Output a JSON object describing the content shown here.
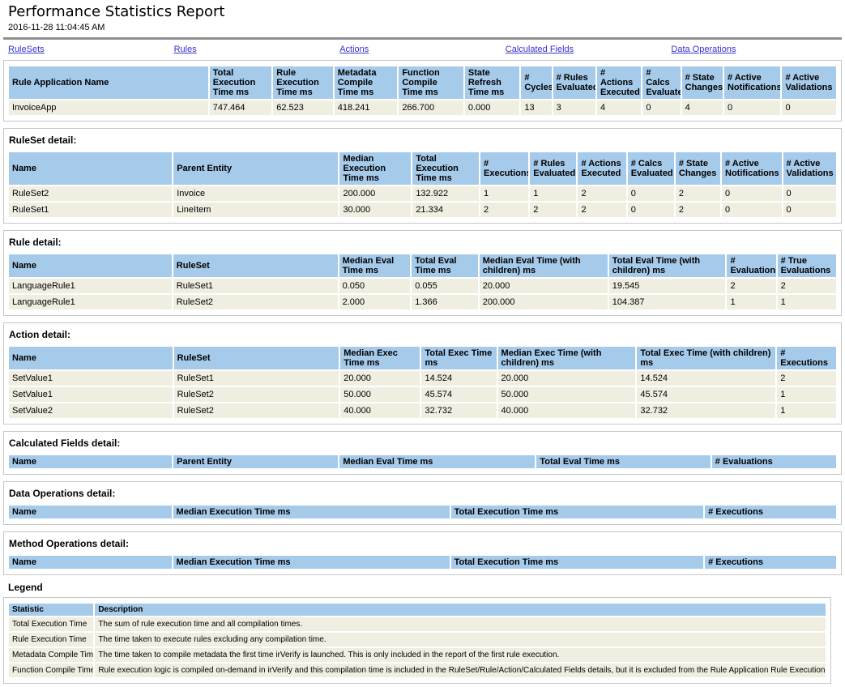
{
  "page": {
    "title": "Performance Statistics Report",
    "timestamp": "2016-11-28 11:04:45 AM"
  },
  "colors": {
    "header_bg": "#a6caea",
    "row_bg": "#efeee1",
    "link": "#3333cc",
    "box_border": "#c6c6c6"
  },
  "nav": {
    "links": [
      {
        "label": "RuleSets"
      },
      {
        "label": "Rules"
      },
      {
        "label": "Actions"
      },
      {
        "label": "Calculated Fields"
      },
      {
        "label": "Data Operations"
      }
    ]
  },
  "sections": [
    {
      "id": "rule-application",
      "heading": null,
      "columns": [
        "Rule Application Name",
        "Total Execution Time ms",
        "Rule Execution Time ms",
        "Metadata Compile Time ms",
        "Function Compile Time ms",
        "State Refresh Time ms",
        "# Cycles",
        "# Rules Evaluated",
        "# Actions Executed",
        "# Calcs Evaluated",
        "# State Changes",
        "# Active Notifications",
        "# Active Validations"
      ],
      "rows": [
        [
          "InvoiceApp",
          "747.464",
          "62.523",
          "418.241",
          "266.700",
          "0.000",
          "13",
          "3",
          "4",
          "0",
          "4",
          "0",
          "0"
        ]
      ]
    },
    {
      "id": "ruleset-detail",
      "heading": "RuleSet detail:",
      "columns": [
        "Name",
        "Parent Entity",
        "Median Execution Time ms",
        "Total Execution Time ms",
        "# Executions",
        "# Rules Evaluated",
        "# Actions Executed",
        "# Calcs Evaluated",
        "# State Changes",
        "# Active Notifications",
        "# Active Validations"
      ],
      "rows": [
        [
          "RuleSet2",
          "Invoice",
          "200.000",
          "132.922",
          "1",
          "1",
          "2",
          "0",
          "2",
          "0",
          "0"
        ],
        [
          "RuleSet1",
          "LineItem",
          "30.000",
          "21.334",
          "2",
          "2",
          "2",
          "0",
          "2",
          "0",
          "0"
        ]
      ]
    },
    {
      "id": "rule-detail",
      "heading": "Rule detail:",
      "columns": [
        "Name",
        "RuleSet",
        "Median Eval Time ms",
        "Total Eval Time ms",
        "Median Eval Time (with children) ms",
        "Total Eval Time (with children) ms",
        "# Evaluations",
        "# True Evaluations"
      ],
      "rows": [
        [
          "LanguageRule1",
          "RuleSet1",
          "0.050",
          "0.055",
          "20.000",
          "19.545",
          "2",
          "2"
        ],
        [
          "LanguageRule1",
          "RuleSet2",
          "2.000",
          "1.366",
          "200.000",
          "104.387",
          "1",
          "1"
        ]
      ]
    },
    {
      "id": "action-detail",
      "heading": "Action detail:",
      "columns": [
        "Name",
        "RuleSet",
        "Median Exec Time ms",
        "Total Exec Time ms",
        "Median Exec Time (with children) ms",
        "Total Exec Time (with children) ms",
        "# Executions"
      ],
      "rows": [
        [
          "SetValue1",
          "RuleSet1",
          "20.000",
          "14.524",
          "20.000",
          "14.524",
          "2"
        ],
        [
          "SetValue1",
          "RuleSet2",
          "50.000",
          "45.574",
          "50.000",
          "45.574",
          "1"
        ],
        [
          "SetValue2",
          "RuleSet2",
          "40.000",
          "32.732",
          "40.000",
          "32.732",
          "1"
        ]
      ]
    },
    {
      "id": "calculated-fields-detail",
      "heading": "Calculated Fields detail:",
      "columns": [
        "Name",
        "Parent Entity",
        "Median Eval Time ms",
        "Total Eval Time ms",
        "# Evaluations"
      ],
      "rows": []
    },
    {
      "id": "data-operations-detail",
      "heading": "Data Operations detail:",
      "columns": [
        "Name",
        "Median Execution Time ms",
        "Total Execution Time ms",
        "# Executions"
      ],
      "rows": []
    },
    {
      "id": "method-operations-detail",
      "heading": "Method Operations detail:",
      "columns": [
        "Name",
        "Median Execution Time ms",
        "Total Execution Time ms",
        "# Executions"
      ],
      "rows": []
    }
  ],
  "legend": {
    "heading": "Legend",
    "columns": [
      "Statistic",
      "Description"
    ],
    "rows": [
      [
        "Total Execution Time",
        "The sum of rule execution time and all compilation times."
      ],
      [
        "Rule Execution Time",
        "The time taken to execute rules excluding any compilation time."
      ],
      [
        "Metadata Compile Time",
        "The time taken to compile metadata the first time irVerify is launched. This is only included in the report of the first rule execution."
      ],
      [
        "Function Compile Time",
        "Rule execution logic is compiled on-demand in irVerify and this compilation time is included in the RuleSet/Rule/Action/Calculated Fields details, but it is excluded from the Rule Application Rule Execution Time."
      ]
    ]
  }
}
